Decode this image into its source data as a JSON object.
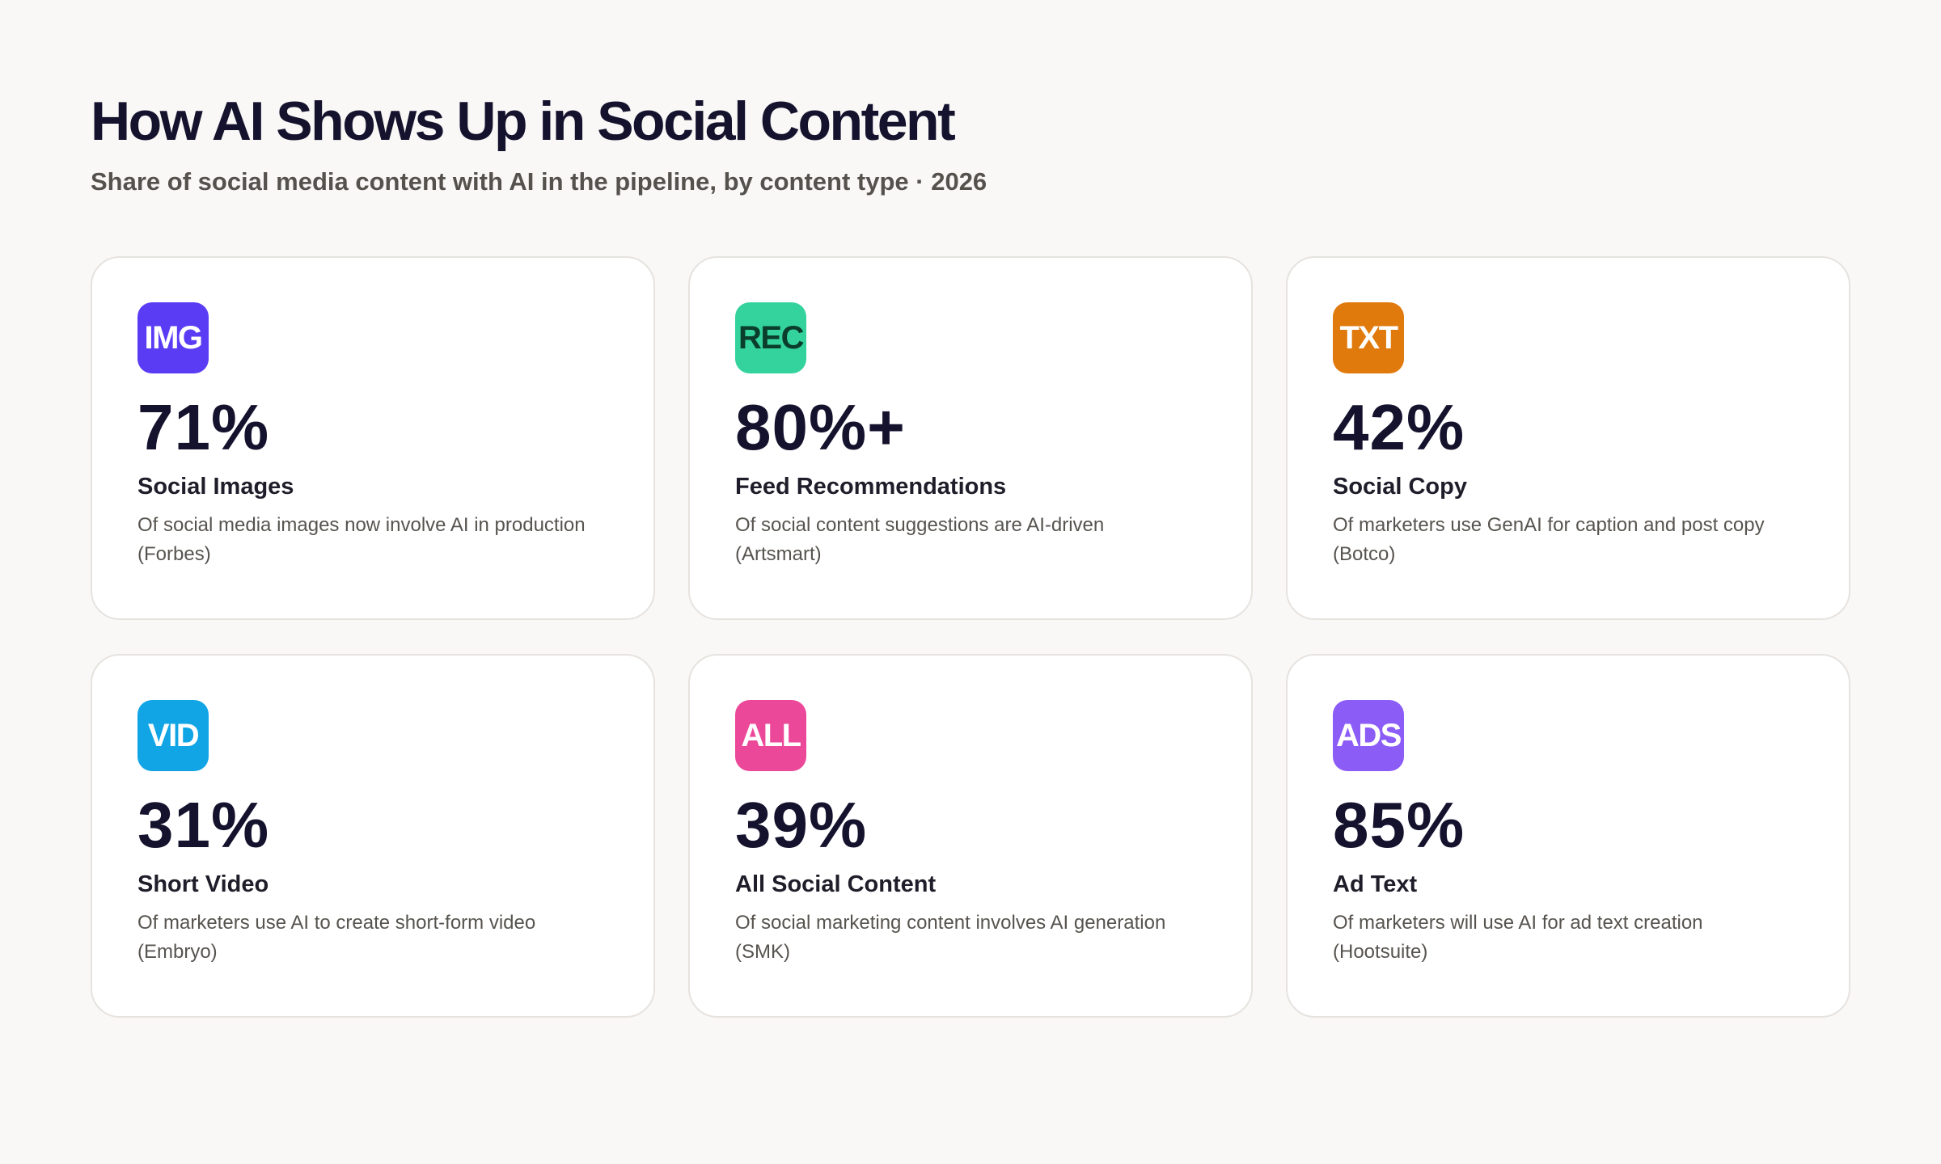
{
  "header": {
    "title": "How AI Shows Up in Social Content",
    "subtitle": "Share of social media content with AI in the pipeline, by content type · 2026"
  },
  "cards": [
    {
      "badge": "IMG",
      "badge_color": "#5b3cf5",
      "badge_text_color": "#ffffff",
      "value": "71%",
      "label": "Social Images",
      "description": "Of social media images now involve AI in production (Forbes)"
    },
    {
      "badge": "REC",
      "badge_color": "#34d39e",
      "badge_text_color": "#0b3d2c",
      "value": "80%+",
      "label": "Feed Recommendations",
      "description": "Of social content suggestions are AI-driven (Artsmart)"
    },
    {
      "badge": "TXT",
      "badge_color": "#e07a0c",
      "badge_text_color": "#ffffff",
      "value": "42%",
      "label": "Social Copy",
      "description": "Of marketers use GenAI for caption and post copy (Botco)"
    },
    {
      "badge": "VID",
      "badge_color": "#11a5e6",
      "badge_text_color": "#ffffff",
      "value": "31%",
      "label": "Short Video",
      "description": "Of marketers use AI to create short-form video (Embryo)"
    },
    {
      "badge": "ALL",
      "badge_color": "#ec4899",
      "badge_text_color": "#ffffff",
      "value": "39%",
      "label": "All Social Content",
      "description": "Of social marketing content involves AI generation (SMK)"
    },
    {
      "badge": "ADS",
      "badge_color": "#8b5cf6",
      "badge_text_color": "#ffffff",
      "value": "85%",
      "label": "Ad Text",
      "description": "Of marketers will use AI for ad text creation (Hootsuite)"
    }
  ]
}
